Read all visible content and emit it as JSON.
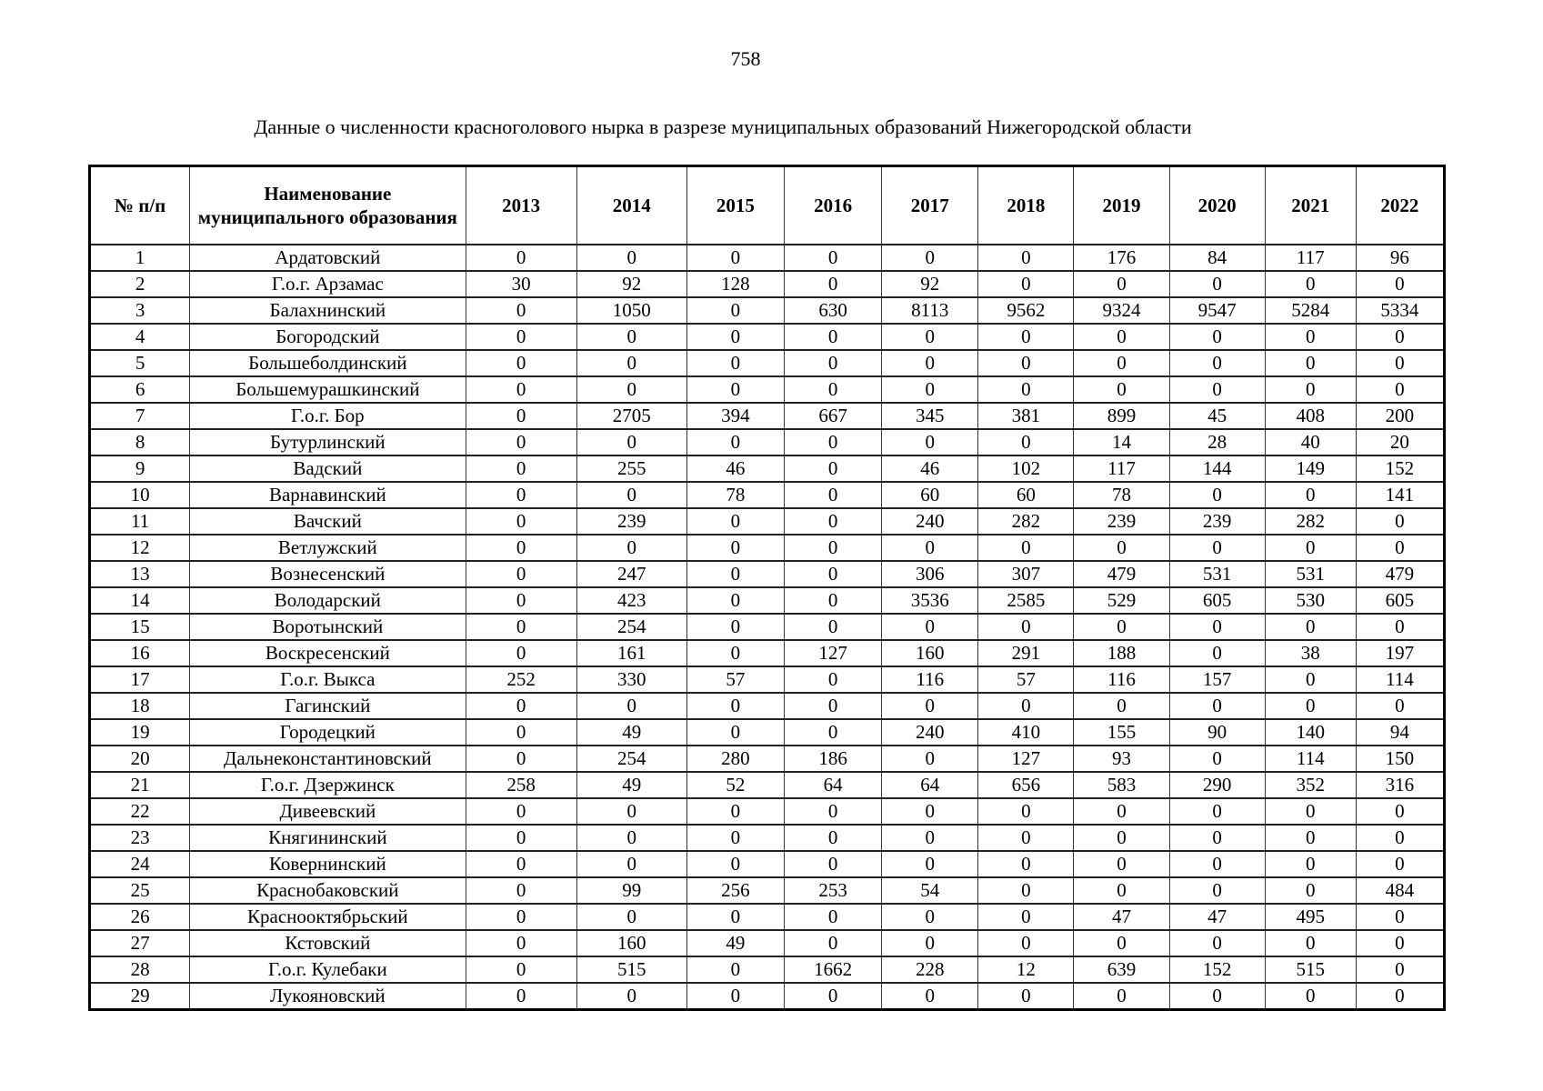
{
  "page": {
    "number": "758",
    "title": "Данные о численности красноголового нырка в разрезе муниципальных образований Нижегородской области"
  },
  "table": {
    "header_num": "№ п/п",
    "header_name": "Наименование муниципального образования",
    "years": [
      "2013",
      "2014",
      "2015",
      "2016",
      "2017",
      "2018",
      "2019",
      "2020",
      "2021",
      "2022"
    ],
    "rows": [
      {
        "n": "1",
        "name": "Ардатовский",
        "values": [
          "0",
          "0",
          "0",
          "0",
          "0",
          "0",
          "176",
          "84",
          "117",
          "96"
        ]
      },
      {
        "n": "2",
        "name": "Г.о.г. Арзамас",
        "values": [
          "30",
          "92",
          "128",
          "0",
          "92",
          "0",
          "0",
          "0",
          "0",
          "0"
        ]
      },
      {
        "n": "3",
        "name": "Балахнинский",
        "values": [
          "0",
          "1050",
          "0",
          "630",
          "8113",
          "9562",
          "9324",
          "9547",
          "5284",
          "5334"
        ]
      },
      {
        "n": "4",
        "name": "Богородский",
        "values": [
          "0",
          "0",
          "0",
          "0",
          "0",
          "0",
          "0",
          "0",
          "0",
          "0"
        ]
      },
      {
        "n": "5",
        "name": "Большеболдинский",
        "values": [
          "0",
          "0",
          "0",
          "0",
          "0",
          "0",
          "0",
          "0",
          "0",
          "0"
        ]
      },
      {
        "n": "6",
        "name": "Большемурашкинский",
        "values": [
          "0",
          "0",
          "0",
          "0",
          "0",
          "0",
          "0",
          "0",
          "0",
          "0"
        ]
      },
      {
        "n": "7",
        "name": "Г.о.г. Бор",
        "values": [
          "0",
          "2705",
          "394",
          "667",
          "345",
          "381",
          "899",
          "45",
          "408",
          "200"
        ]
      },
      {
        "n": "8",
        "name": "Бутурлинский",
        "values": [
          "0",
          "0",
          "0",
          "0",
          "0",
          "0",
          "14",
          "28",
          "40",
          "20"
        ]
      },
      {
        "n": "9",
        "name": "Вадский",
        "values": [
          "0",
          "255",
          "46",
          "0",
          "46",
          "102",
          "117",
          "144",
          "149",
          "152"
        ]
      },
      {
        "n": "10",
        "name": "Варнавинский",
        "values": [
          "0",
          "0",
          "78",
          "0",
          "60",
          "60",
          "78",
          "0",
          "0",
          "141"
        ]
      },
      {
        "n": "11",
        "name": "Вачский",
        "values": [
          "0",
          "239",
          "0",
          "0",
          "240",
          "282",
          "239",
          "239",
          "282",
          "0"
        ]
      },
      {
        "n": "12",
        "name": "Ветлужский",
        "values": [
          "0",
          "0",
          "0",
          "0",
          "0",
          "0",
          "0",
          "0",
          "0",
          "0"
        ]
      },
      {
        "n": "13",
        "name": "Вознесенский",
        "values": [
          "0",
          "247",
          "0",
          "0",
          "306",
          "307",
          "479",
          "531",
          "531",
          "479"
        ]
      },
      {
        "n": "14",
        "name": "Володарский",
        "values": [
          "0",
          "423",
          "0",
          "0",
          "3536",
          "2585",
          "529",
          "605",
          "530",
          "605"
        ]
      },
      {
        "n": "15",
        "name": "Воротынский",
        "values": [
          "0",
          "254",
          "0",
          "0",
          "0",
          "0",
          "0",
          "0",
          "0",
          "0"
        ]
      },
      {
        "n": "16",
        "name": "Воскресенский",
        "values": [
          "0",
          "161",
          "0",
          "127",
          "160",
          "291",
          "188",
          "0",
          "38",
          "197"
        ]
      },
      {
        "n": "17",
        "name": "Г.о.г. Выкса",
        "values": [
          "252",
          "330",
          "57",
          "0",
          "116",
          "57",
          "116",
          "157",
          "0",
          "114"
        ]
      },
      {
        "n": "18",
        "name": "Гагинский",
        "values": [
          "0",
          "0",
          "0",
          "0",
          "0",
          "0",
          "0",
          "0",
          "0",
          "0"
        ]
      },
      {
        "n": "19",
        "name": "Городецкий",
        "values": [
          "0",
          "49",
          "0",
          "0",
          "240",
          "410",
          "155",
          "90",
          "140",
          "94"
        ]
      },
      {
        "n": "20",
        "name": "Дальнеконстантиновский",
        "values": [
          "0",
          "254",
          "280",
          "186",
          "0",
          "127",
          "93",
          "0",
          "114",
          "150"
        ]
      },
      {
        "n": "21",
        "name": "Г.о.г. Дзержинск",
        "values": [
          "258",
          "49",
          "52",
          "64",
          "64",
          "656",
          "583",
          "290",
          "352",
          "316"
        ]
      },
      {
        "n": "22",
        "name": "Дивеевский",
        "values": [
          "0",
          "0",
          "0",
          "0",
          "0",
          "0",
          "0",
          "0",
          "0",
          "0"
        ]
      },
      {
        "n": "23",
        "name": "Княгининский",
        "values": [
          "0",
          "0",
          "0",
          "0",
          "0",
          "0",
          "0",
          "0",
          "0",
          "0"
        ]
      },
      {
        "n": "24",
        "name": "Ковернинский",
        "values": [
          "0",
          "0",
          "0",
          "0",
          "0",
          "0",
          "0",
          "0",
          "0",
          "0"
        ]
      },
      {
        "n": "25",
        "name": "Краснобаковский",
        "values": [
          "0",
          "99",
          "256",
          "253",
          "54",
          "0",
          "0",
          "0",
          "0",
          "484"
        ]
      },
      {
        "n": "26",
        "name": "Краснооктябрьский",
        "values": [
          "0",
          "0",
          "0",
          "0",
          "0",
          "0",
          "47",
          "47",
          "495",
          "0"
        ]
      },
      {
        "n": "27",
        "name": "Кстовский",
        "values": [
          "0",
          "160",
          "49",
          "0",
          "0",
          "0",
          "0",
          "0",
          "0",
          "0"
        ]
      },
      {
        "n": "28",
        "name": "Г.о.г. Кулебаки",
        "values": [
          "0",
          "515",
          "0",
          "1662",
          "228",
          "12",
          "639",
          "152",
          "515",
          "0"
        ]
      },
      {
        "n": "29",
        "name": "Лукояновский",
        "values": [
          "0",
          "0",
          "0",
          "0",
          "0",
          "0",
          "0",
          "0",
          "0",
          "0"
        ]
      }
    ]
  }
}
